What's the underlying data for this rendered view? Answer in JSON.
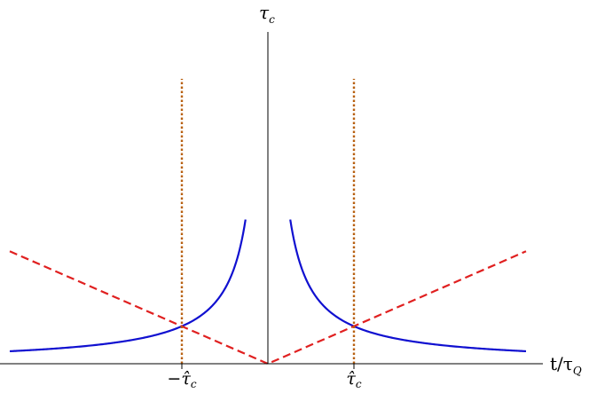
{
  "chart_data": {
    "type": "line",
    "title": "",
    "xlabel": {
      "main": "t/τ",
      "sub": "Q"
    },
    "ylabel": {
      "main": "τ",
      "sub": "c"
    },
    "xlim": [
      -3.0,
      3.0
    ],
    "ylim": [
      0,
      3.8
    ],
    "x_ticks": [
      {
        "value": -1.0,
        "main": "−τ̂",
        "sub": "c"
      },
      {
        "value": 1.0,
        "main": "τ̂",
        "sub": "c"
      }
    ],
    "series": [
      {
        "style": "solid",
        "color": "#1010d0",
        "formula": "0.5 / |x|",
        "x": [
          -3.0,
          -2.5,
          -2.0,
          -1.5,
          -1.0,
          -0.75,
          -0.5,
          -0.35,
          -0.26,
          -0.26,
          -0.35,
          -0.5,
          -0.75,
          1.0,
          1.5,
          2.0,
          2.5,
          3.0
        ],
        "y": [
          0.167,
          0.2,
          0.25,
          0.333,
          0.5,
          0.667,
          1.0,
          1.429,
          1.923,
          1.923,
          1.429,
          1.0,
          0.667,
          0.5,
          0.333,
          0.25,
          0.2,
          0.167
        ]
      },
      {
        "style": "dashed",
        "color": "#e02020",
        "formula": "0.5 * |x|",
        "x": [
          -3.0,
          0.0,
          3.0
        ],
        "y": [
          1.5,
          0.0,
          1.5
        ]
      },
      {
        "style": "dotted",
        "color": "#b86010",
        "x": [
          -1.0,
          -1.0
        ],
        "y": [
          0,
          3.8
        ]
      },
      {
        "style": "dotted",
        "color": "#b86010",
        "x": [
          1.0,
          1.0
        ],
        "y": [
          0,
          3.8
        ]
      }
    ],
    "grid": false,
    "legend": "none"
  }
}
